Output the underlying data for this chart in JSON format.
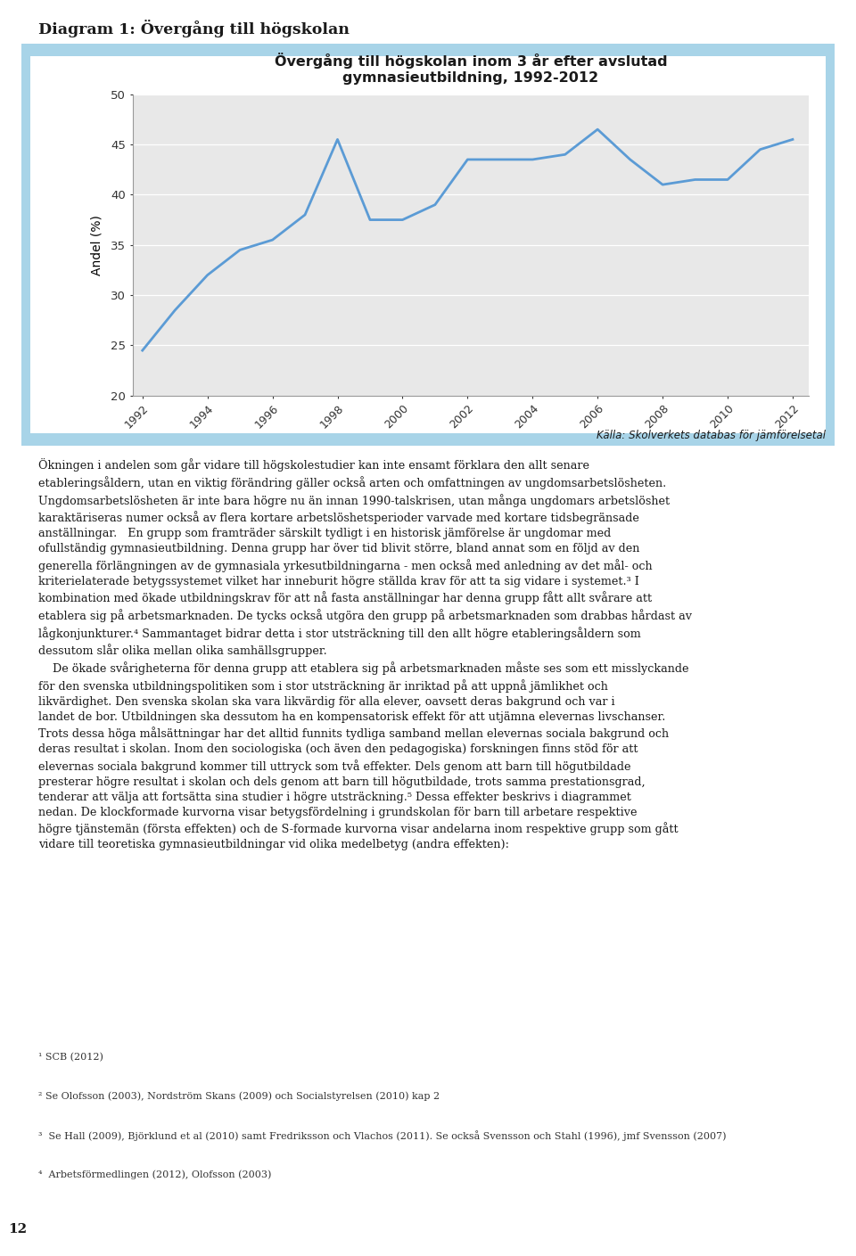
{
  "page_title": "Diagram 1: Övergång till högskolan",
  "page_number": "12",
  "chart_title_line1": "Övergång till högskolan inom 3 år efter avslutad",
  "chart_title_line2": "gymnasieutbildning, 1992-2012",
  "ylabel": "Andel (%)",
  "years": [
    1992,
    1993,
    1994,
    1995,
    1996,
    1997,
    1998,
    1999,
    2000,
    2001,
    2002,
    2003,
    2004,
    2005,
    2006,
    2007,
    2008,
    2009,
    2010,
    2011,
    2012
  ],
  "values": [
    24.5,
    28.5,
    32.0,
    34.5,
    35.5,
    38.0,
    45.5,
    37.5,
    37.5,
    39.0,
    43.5,
    43.5,
    43.5,
    44.0,
    46.5,
    43.5,
    41.0,
    41.5,
    41.5,
    44.5,
    45.5
  ],
  "ylim": [
    20,
    50
  ],
  "yticks": [
    20,
    25,
    30,
    35,
    40,
    45,
    50
  ],
  "xtick_years": [
    1992,
    1994,
    1996,
    1998,
    2000,
    2002,
    2004,
    2006,
    2008,
    2010,
    2012
  ],
  "line_color": "#5b9bd5",
  "line_width": 2.0,
  "plot_bg_color": "#e8e8e8",
  "chart_border_color": "#a8d4e8",
  "source_label": "Källa:",
  "source_rest": " Skolverkets databas för jämförelsetal",
  "body_paragraphs": [
    "Ökningen i andelen som går vidare till högskolestudier kan inte ensamt förklara den allt senare etableringsåldern, utan en viktig förändring gäller också arten och omfattningen av ungdomsarbetslösheten. Ungdomsarbetslösheten är inte bara högre nu än innan 1990-talskrisen, utan många ungdomars arbetslöshet karaktäriseras numer också av flera kortare arbetslöshetsperioder varvade med kortare tidsbegränsade anställningar.   En grupp som framträder särskilt tydligt i en historisk jämförelse är ungdomar med ofullständig gymnasieutbildning. Denna grupp har över tid blivit större, bland annat som en följd av den generella förlängningen av de gymnasiala yrkesutbildningarna - men också med anledning av det mål- och kriterielaterade betygssystemet vilket har inneburit högre ställda krav för att ta sig vidare i systemet.³ I kombination med ökade utbildningskrav för att nå fasta anställningar har denna grupp fått allt svårare att etablera sig på arbetsmarknaden. De tycks också utgöra den grupp på arbetsmarknaden som drabbas hårdast av lågkonjunkturer.⁴ Sammantaget bidrar detta i stor utsträckning till den allt högre etableringsåldern som dessutom slår olika mellan olika samhällsgrupper.",
    "De ökade svårigheterna för denna grupp att etablera sig på arbetsmarknaden måste ses som ett misslyckande för den svenska utbildningspolitiken som i stor utsträckning är inriktad på att uppnå jämlikhet och likvärdighet. Den svenska skolan ska vara likvärdig för alla elever, oavsett deras bakgrund och var i landet de bor. Utbildningen ska dessutom ha en kompensatorisk effekt för att utjämna elevernas livschanser. Trots dessa höga målsättningar har det alltid funnits tydliga samband mellan elevernas sociala bakgrund och deras resultat i skolan. Inom den sociologiska (och även den pedagogiska) forskningen finns stöd för att elevernas sociala bakgrund kommer till uttryck som två effekter. Dels genom att barn till högutbildade presterar högre resultat i skolan och dels genom att barn till högutbildade, trots samma prestationsgrad, tenderar att välja att fortsätta sina studier i högre utsträckning.⁵ Dessa effekter beskrivs i diagrammet nedan. De klockformade kurvorna visar betygsfördelning i grundskolan för barn till arbetare respektive högre tjänstemän (första effekten) och de S-formade kurvorna visar andelarna inom respektive grupp som gått vidare till teoretiska gymnasieutbildningar vid olika medelbetyg (andra effekten):"
  ],
  "footnotes": [
    "¹ SCB (2012)",
    "² Se Olofsson (2003), Nordström Skans (2009) och Socialstyrelsen (2010) kap 2",
    "³  Se Hall (2009), Björklund et al (2010) samt Fredriksson och Vlachos (2011). Se också Svensson och Stahl (1996), jmf Svensson (2007)",
    "⁴  Arbetsförmedlingen (2012), Olofsson (2003)"
  ],
  "bg_color": "#ffffff",
  "text_color": "#1a1a1a",
  "border_color": "#a8d4e8",
  "footnote_color": "#333333"
}
